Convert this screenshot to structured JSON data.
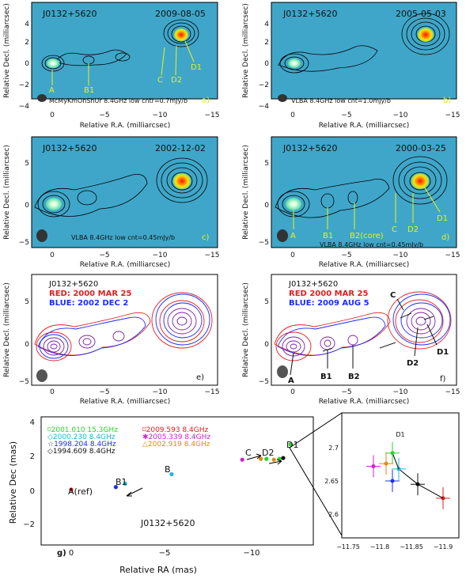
{
  "source": "J0132+5620",
  "colors": {
    "map_bg": "#3fa6c9",
    "label_yellow": "#e8f21a",
    "red": "#e02020",
    "blue": "#1a2cff",
    "purple": "#7a1fa8"
  },
  "panel_axes": {
    "xlabel": "Relative R.A. (milliarcsec)",
    "ylabel": "Relative Decl. (milliarcsec)",
    "x_ticks": [
      "0",
      "−5",
      "−10",
      "−15"
    ]
  },
  "panels": [
    {
      "id": "a",
      "source": "J0132+5620",
      "date": "2009-08-05",
      "caption": "McMyKmOnShUr 8.4GHz low cntr=0.7mJy/b",
      "letter": "a)",
      "y_ticks": [
        "4",
        "2",
        "0",
        "−2",
        "−4"
      ],
      "components": [
        "A",
        "B1",
        "C",
        "D2",
        "D1"
      ]
    },
    {
      "id": "b",
      "source": "J0132+5620",
      "date": "2005-05-03",
      "caption": "VLBA 8.4GHz low cnt=1.0mJy/b",
      "letter": "b)",
      "y_ticks": [
        "4",
        "2",
        "0",
        "−2",
        "−4"
      ],
      "components": []
    },
    {
      "id": "c",
      "source": "J0132+5620",
      "date": "2002-12-02",
      "caption": "VLBA 8.4GHz low cnt=0.45mJy/b",
      "letter": "c)",
      "y_ticks": [
        "5",
        "0",
        "−5"
      ],
      "components": []
    },
    {
      "id": "d",
      "source": "J0132+5620",
      "date": "2000-03-25",
      "caption": "VLBA 8.4GHz low cnt=0.45mJy/b",
      "letter": "d)",
      "y_ticks": [
        "5",
        "0",
        "−5"
      ],
      "components": [
        "A",
        "B1",
        "B2(core)",
        "C",
        "D2",
        "D1"
      ]
    },
    {
      "id": "e",
      "source": "J0132+5620",
      "red_label": "RED: 2000 MAR 25",
      "blue_label": "BLUE: 2002 DEC 2",
      "letter": "e)",
      "y_ticks": [
        "5",
        "0",
        "−5"
      ],
      "components": []
    },
    {
      "id": "f",
      "source": "J0132+5620",
      "red_label": "RED 2000 MAR 25",
      "blue_label": "BLUE: 2009 AUG 5",
      "letter": "f)",
      "y_ticks": [
        "5",
        "0",
        "−5"
      ],
      "components": [
        "A",
        "B1",
        "B2",
        "C",
        "D2",
        "D1"
      ]
    }
  ],
  "panel_g": {
    "letter": "g)",
    "source": "J0132+5620",
    "xlabel": "Relative RA (mas)",
    "ylabel": "Relative Dec (mas)",
    "x_ticks": [
      "0",
      "−5",
      "−10"
    ],
    "y_ticks": [
      "4",
      "2",
      "0",
      "−2"
    ],
    "component_labels": [
      "A(ref)",
      "B1",
      "B",
      "C",
      "D2",
      "D1"
    ],
    "legend": [
      {
        "text": "2001.010 15.3GHz",
        "color": "#28d428",
        "symbol": "⌑"
      },
      {
        "text": "2000.230 8.4GHz",
        "color": "#18b8d8",
        "symbol": "◇"
      },
      {
        "text": "1998.204 8.4GHz",
        "color": "#1a2cff",
        "symbol": "☆"
      },
      {
        "text": "1994.609 8.4GHz",
        "color": "#111111",
        "symbol": "◇"
      },
      {
        "text": "2009.593 8.4GHz",
        "color": "#e02020",
        "symbol": "⌑"
      },
      {
        "text": "2005.339 8.4GHz",
        "color": "#d020d0",
        "symbol": "✱"
      },
      {
        "text": "2002.919 8.4GHz",
        "color": "#e08a10",
        "symbol": "△"
      }
    ]
  },
  "inset": {
    "title": "D1",
    "x_ticks": [
      "−11.75",
      "−11.8",
      "−11.85",
      "−11.9"
    ],
    "y_ticks": [
      "2.7",
      "2.65",
      "2.6"
    ]
  },
  "chart_data": {
    "type": "scatter",
    "title": "",
    "xlabel": "Relative RA (mas)",
    "ylabel": "Relative Dec (mas)",
    "xlim": [
      2,
      -12
    ],
    "ylim": [
      -3,
      4
    ],
    "series": [
      {
        "name": "A(ref)",
        "points": [
          [
            0,
            0
          ]
        ]
      },
      {
        "name": "B1",
        "points": [
          [
            -2.4,
            0.15
          ],
          [
            -2.9,
            0.35
          ]
        ]
      },
      {
        "name": "B",
        "points": [
          [
            -5.4,
            0.9
          ]
        ]
      },
      {
        "name": "C",
        "points": [
          [
            -9.2,
            1.75
          ],
          [
            -10.2,
            1.8
          ],
          [
            -10.5,
            1.8
          ]
        ]
      },
      {
        "name": "D2",
        "points": [
          [
            -10.9,
            1.75
          ],
          [
            -11.2,
            1.8
          ],
          [
            -11.4,
            1.85
          ]
        ]
      },
      {
        "name": "D1",
        "points": [
          [
            -11.8,
            2.65
          ]
        ]
      }
    ],
    "inset_series": {
      "name": "D1",
      "xlim": [
        -11.75,
        -11.92
      ],
      "ylim": [
        2.58,
        2.73
      ],
      "points": [
        {
          "x": -11.9,
          "y": 2.624,
          "color": "#e02020"
        },
        {
          "x": -11.86,
          "y": 2.645,
          "color": "#111111"
        },
        {
          "x": -11.83,
          "y": 2.668,
          "color": "#18b8d8"
        },
        {
          "x": -11.82,
          "y": 2.692,
          "color": "#28d428"
        },
        {
          "x": -11.81,
          "y": 2.676,
          "color": "#e08a10"
        },
        {
          "x": -11.79,
          "y": 2.672,
          "color": "#d020d0"
        },
        {
          "x": -11.82,
          "y": 2.65,
          "color": "#1a2cff"
        }
      ]
    }
  }
}
